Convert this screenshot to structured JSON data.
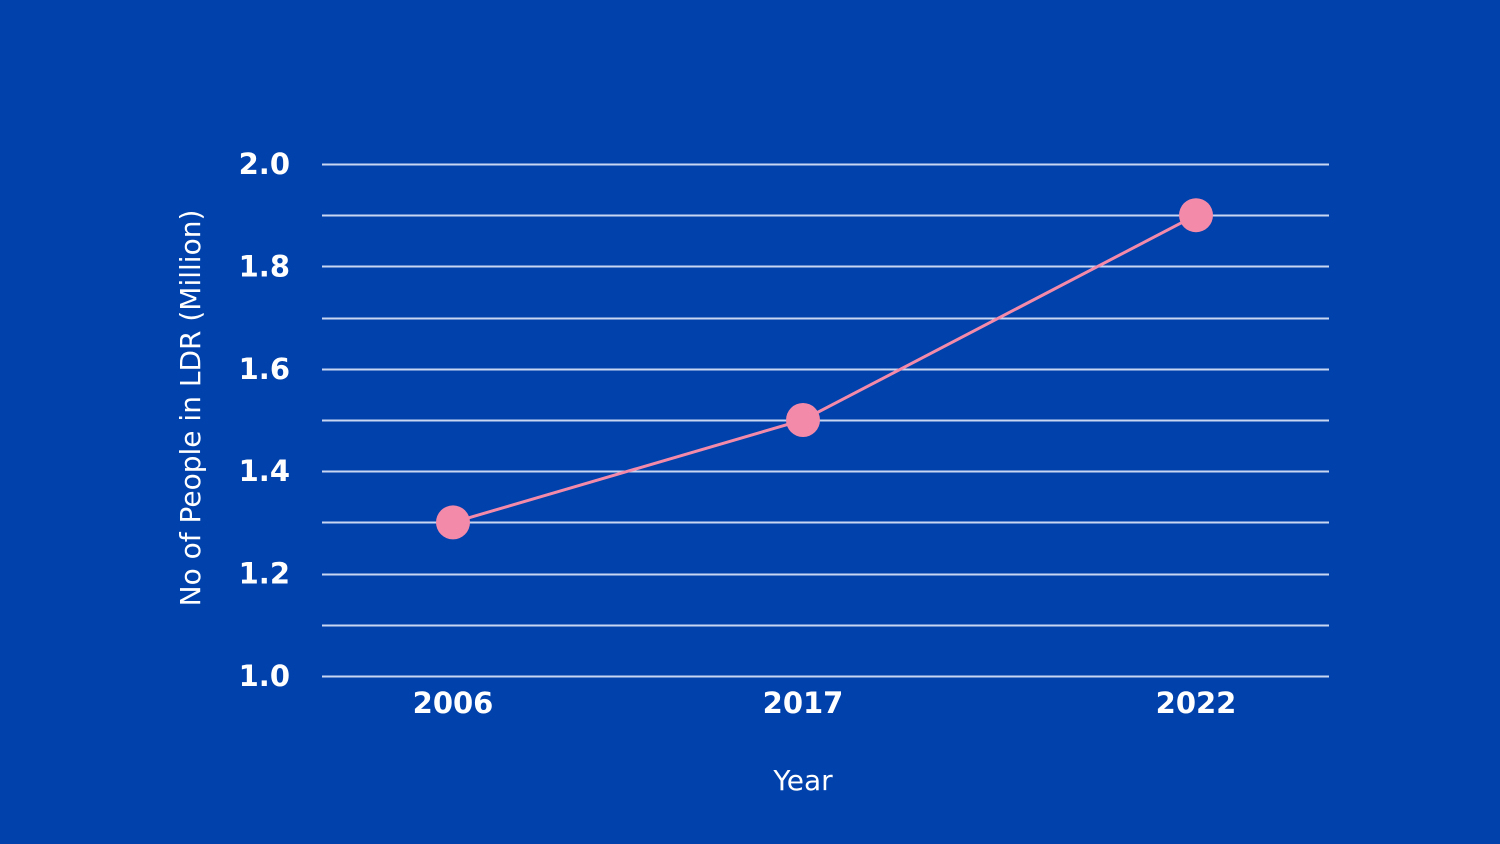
{
  "chart_data": {
    "type": "line",
    "xlabel": "Year",
    "ylabel": "No of People in LDR (Million)",
    "ylim": [
      1.0,
      2.0
    ],
    "grid": true,
    "x": [
      "2006",
      "2017",
      "2022"
    ],
    "y_ticks": [
      "1.0",
      "1.2",
      "1.4",
      "1.6",
      "1.8",
      "2.0"
    ],
    "series": [
      {
        "values": [
          1.3,
          1.5,
          1.9
        ]
      }
    ]
  },
  "colors": {
    "background": "#0041ac",
    "line": "#f48aa9",
    "marker": "#f48aa9",
    "grid": "#c9d6f2",
    "text": "#ffffff"
  }
}
